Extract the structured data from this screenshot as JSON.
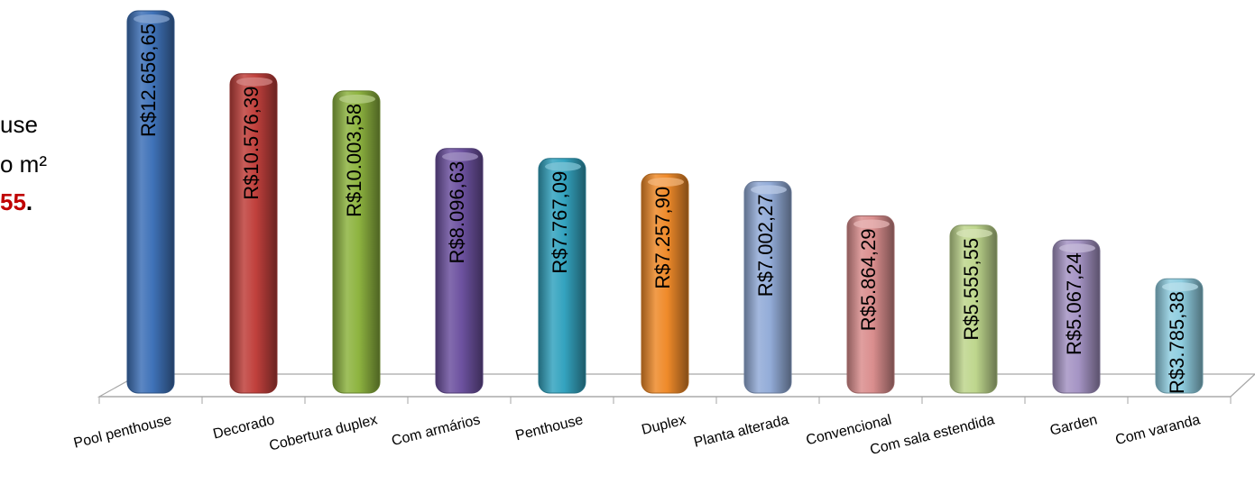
{
  "side_text": {
    "line1": "use",
    "line2": "o m²",
    "line3_value": "55",
    "line3_suffix": "."
  },
  "chart_data": {
    "type": "bar",
    "categories": [
      "Pool penthouse",
      "Decorado",
      "Cobertura duplex",
      "Com armários",
      "Penthouse",
      "Duplex",
      "Planta alterada",
      "Convencional",
      "Com sala estendida",
      "Garden",
      "Com varanda"
    ],
    "values": [
      12656.65,
      10576.39,
      10003.58,
      8096.63,
      7767.09,
      7257.9,
      7002.27,
      5864.29,
      5555.55,
      5067.24,
      3785.38
    ],
    "labels": [
      "R$12.656,65",
      "R$10.576,39",
      "R$10.003,58",
      "R$8.096,63",
      "R$7.767,09",
      "R$7.257,90",
      "R$7.002,27",
      "R$5.864,29",
      "R$5.555,55",
      "R$5.067,24",
      "R$3.785,38"
    ],
    "colors": [
      "#3f72b8",
      "#c0403c",
      "#8eb440",
      "#6d52a0",
      "#34a3bf",
      "#ef8a2a",
      "#93acd8",
      "#da8e8e",
      "#bed68d",
      "#a594c4",
      "#8fcde0"
    ],
    "ylim": [
      0,
      12656.65
    ],
    "grid": false,
    "legend": "none"
  }
}
